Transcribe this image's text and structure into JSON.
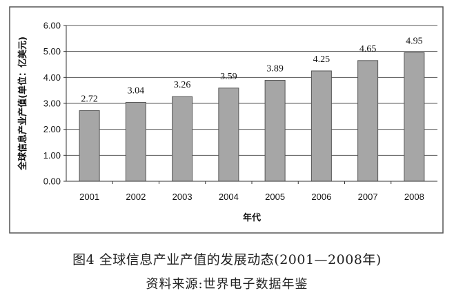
{
  "chart_data": {
    "type": "bar",
    "categories": [
      "2001",
      "2002",
      "2003",
      "2004",
      "2005",
      "2006",
      "2007",
      "2008"
    ],
    "values": [
      2.72,
      3.04,
      3.26,
      3.59,
      3.89,
      4.25,
      4.65,
      4.95
    ],
    "value_labels": [
      "2.72",
      "3.04",
      "3.26",
      "3.59",
      "3.89",
      "4.25",
      "4.65",
      "4.95"
    ],
    "xlabel": "年代",
    "ylabel": "全球信息产业产值(单位：亿美元)",
    "ylim": [
      0,
      6
    ],
    "yticks": [
      "0.00",
      "1.00",
      "2.00",
      "3.00",
      "4.00",
      "5.00",
      "6.00"
    ],
    "grid": true,
    "legend": "none",
    "bar_color": "#a6a6a6",
    "frame_color": "#555555"
  },
  "caption": {
    "title": "图4  全球信息产业产值的发展动态(2001—2008年)",
    "source": "资料来源:世界电子数据年鉴"
  }
}
